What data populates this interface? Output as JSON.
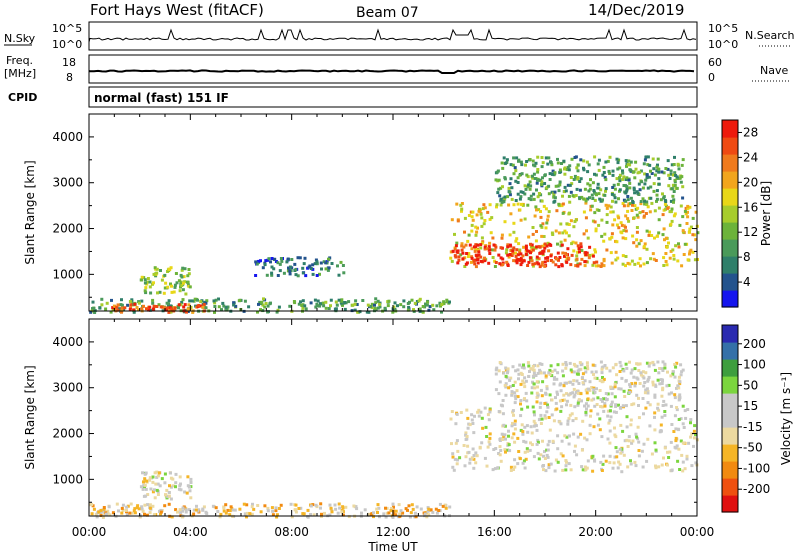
{
  "header": {
    "station": "Fort Hays West (fitACF)",
    "beam": "Beam 07",
    "date": "14/Dec/2019"
  },
  "nsky_panel": {
    "left_label": "N.Sky",
    "left_ticks": [
      "10^5",
      "10^0"
    ],
    "right_ticks": [
      "10^5",
      "10^0"
    ],
    "right_label": "N.Search"
  },
  "freq_panel": {
    "left_label_line1": "Freq.",
    "left_label_line2": "[MHz]",
    "left_ticks": [
      "18",
      "8"
    ],
    "right_ticks": [
      "60",
      "0"
    ],
    "right_label": "Nave"
  },
  "cpid_panel": {
    "left_label": "CPID",
    "program": "normal (fast) 151 IF"
  },
  "colors": {
    "power_scale": [
      "#1515ee",
      "#23538d",
      "#2f7f6a",
      "#4a9a5a",
      "#6cb33a",
      "#a7cc2c",
      "#e8d718",
      "#f2a51d",
      "#f07a1c",
      "#ef4a12",
      "#ee1a0c"
    ],
    "velocity_scale": [
      "#e01010",
      "#ef5010",
      "#f28a10",
      "#f5b526",
      "#ecd9a0",
      "#c8c8c8",
      "#c8c8c8",
      "#7bd53e",
      "#3e9e3e",
      "#3470a8",
      "#2a2ab0"
    ],
    "ground_scatter": "#c8c8c8"
  },
  "chart_data": [
    {
      "type": "heatmap",
      "name": "power-panel",
      "ylabel": "Slant Range [km]",
      "yticks": [
        "1000",
        "2000",
        "3000",
        "4000"
      ],
      "ylim": [
        200,
        4500
      ],
      "xlim": [
        0,
        24
      ],
      "colorbar": {
        "label": "Power [dB]",
        "ticks": [
          "4",
          "8",
          "12",
          "16",
          "20",
          "24",
          "28"
        ],
        "range": [
          0,
          30
        ]
      },
      "features": [
        {
          "t0": 0.0,
          "t1": 14.2,
          "r0": 200,
          "r1": 500,
          "value": 10
        },
        {
          "t0": 0.8,
          "t1": 4.6,
          "r0": 200,
          "r1": 380,
          "value": 25
        },
        {
          "t0": 2.0,
          "t1": 4.0,
          "r0": 600,
          "r1": 1200,
          "value": 14
        },
        {
          "t0": 6.5,
          "t1": 10.0,
          "r0": 1000,
          "r1": 1400,
          "value": 6
        },
        {
          "t0": 14.2,
          "t1": 24.0,
          "r0": 1200,
          "r1": 2600,
          "value": 18
        },
        {
          "t0": 14.3,
          "t1": 20.0,
          "r0": 1200,
          "r1": 1700,
          "value": 28
        },
        {
          "t0": 16.0,
          "t1": 23.4,
          "r0": 2600,
          "r1": 3600,
          "value": 10
        }
      ]
    },
    {
      "type": "heatmap",
      "name": "velocity-panel",
      "ylabel": "Slant Range [km]",
      "xlabel": "Time UT",
      "xticks": [
        "00:00",
        "04:00",
        "08:00",
        "12:00",
        "16:00",
        "20:00",
        "00:00"
      ],
      "yticks": [
        "1000",
        "2000",
        "3000",
        "4000"
      ],
      "ylim": [
        200,
        4500
      ],
      "xlim": [
        0,
        24
      ],
      "colorbar": {
        "label": "Velocity [m s⁻¹]",
        "ticks": [
          "200",
          "100",
          "50",
          "15",
          "-15",
          "-50",
          "-100",
          "-200"
        ],
        "range": [
          -250,
          250
        ]
      },
      "features": [
        {
          "t0": 0.0,
          "t1": 14.2,
          "r0": 200,
          "r1": 500,
          "value": -60
        },
        {
          "t0": 2.0,
          "t1": 4.0,
          "r0": 600,
          "r1": 1200,
          "value": 0
        },
        {
          "t0": 14.2,
          "t1": 24.0,
          "r0": 1200,
          "r1": 2600,
          "value": 0
        },
        {
          "t0": 16.0,
          "t1": 23.4,
          "r0": 2600,
          "r1": 3600,
          "value": 0
        }
      ]
    }
  ]
}
